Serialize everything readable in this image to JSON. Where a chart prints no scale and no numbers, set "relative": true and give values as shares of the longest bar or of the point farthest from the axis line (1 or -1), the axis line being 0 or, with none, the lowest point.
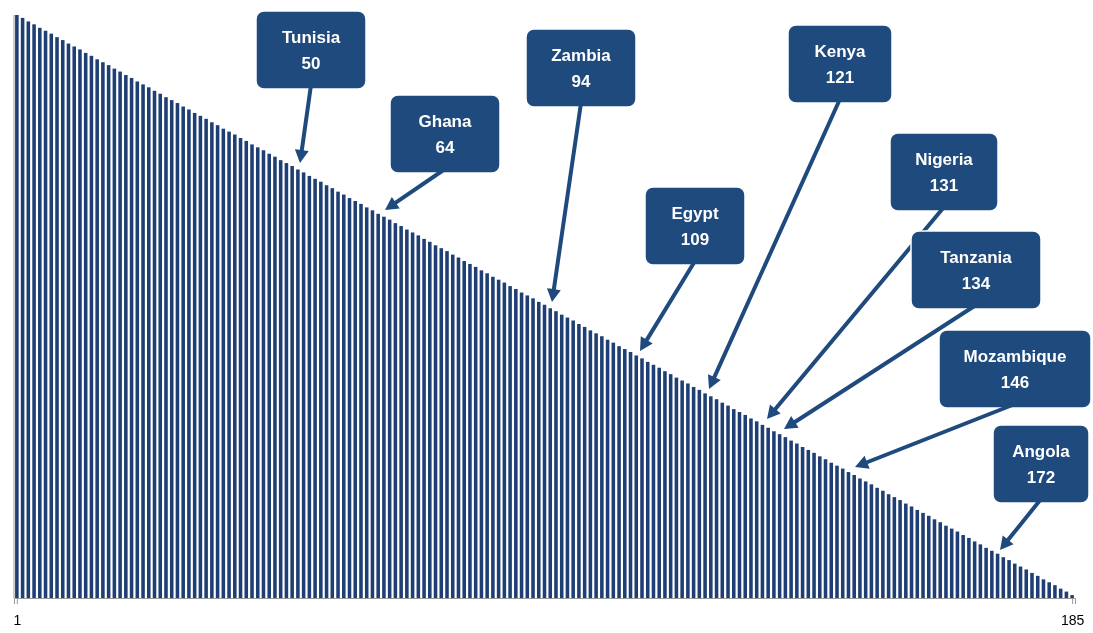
{
  "chart_data": {
    "type": "bar",
    "relative": true,
    "color": "#1f3f74",
    "x": [
      1,
      2,
      3,
      4,
      5,
      6,
      7,
      8,
      9,
      10,
      11,
      12,
      13,
      14,
      15,
      16,
      17,
      18,
      19,
      20,
      21,
      22,
      23,
      24,
      25,
      26,
      27,
      28,
      29,
      30,
      31,
      32,
      33,
      34,
      35,
      36,
      37,
      38,
      39,
      40,
      41,
      42,
      43,
      44,
      45,
      46,
      47,
      48,
      49,
      50,
      51,
      52,
      53,
      54,
      55,
      56,
      57,
      58,
      59,
      60,
      61,
      62,
      63,
      64,
      65,
      66,
      67,
      68,
      69,
      70,
      71,
      72,
      73,
      74,
      75,
      76,
      77,
      78,
      79,
      80,
      81,
      82,
      83,
      84,
      85,
      86,
      87,
      88,
      89,
      90,
      91,
      92,
      93,
      94,
      95,
      96,
      97,
      98,
      99,
      100,
      101,
      102,
      103,
      104,
      105,
      106,
      107,
      108,
      109,
      110,
      111,
      112,
      113,
      114,
      115,
      116,
      117,
      118,
      119,
      120,
      121,
      122,
      123,
      124,
      125,
      126,
      127,
      128,
      129,
      130,
      131,
      132,
      133,
      134,
      135,
      136,
      137,
      138,
      139,
      140,
      141,
      142,
      143,
      144,
      145,
      146,
      147,
      148,
      149,
      150,
      151,
      152,
      153,
      154,
      155,
      156,
      157,
      158,
      159,
      160,
      161,
      162,
      163,
      164,
      165,
      166,
      167,
      168,
      169,
      170,
      171,
      172,
      173,
      174,
      175,
      176,
      177,
      178,
      179,
      180,
      181,
      182,
      183,
      184,
      185
    ],
    "values": [
      1.0,
      0.995,
      0.989,
      0.984,
      0.978,
      0.973,
      0.968,
      0.962,
      0.957,
      0.951,
      0.946,
      0.941,
      0.935,
      0.93,
      0.924,
      0.919,
      0.914,
      0.908,
      0.903,
      0.897,
      0.892,
      0.886,
      0.881,
      0.876,
      0.87,
      0.865,
      0.859,
      0.854,
      0.849,
      0.843,
      0.838,
      0.832,
      0.827,
      0.822,
      0.816,
      0.811,
      0.805,
      0.8,
      0.795,
      0.789,
      0.784,
      0.778,
      0.773,
      0.768,
      0.762,
      0.757,
      0.751,
      0.746,
      0.741,
      0.735,
      0.73,
      0.724,
      0.719,
      0.714,
      0.708,
      0.703,
      0.697,
      0.692,
      0.686,
      0.681,
      0.676,
      0.67,
      0.665,
      0.659,
      0.654,
      0.649,
      0.643,
      0.638,
      0.632,
      0.627,
      0.622,
      0.616,
      0.611,
      0.605,
      0.6,
      0.595,
      0.589,
      0.584,
      0.578,
      0.573,
      0.568,
      0.562,
      0.557,
      0.551,
      0.546,
      0.541,
      0.535,
      0.53,
      0.524,
      0.519,
      0.514,
      0.508,
      0.503,
      0.497,
      0.492,
      0.486,
      0.481,
      0.476,
      0.47,
      0.465,
      0.459,
      0.454,
      0.449,
      0.443,
      0.438,
      0.432,
      0.427,
      0.422,
      0.416,
      0.411,
      0.405,
      0.4,
      0.395,
      0.389,
      0.384,
      0.378,
      0.373,
      0.368,
      0.362,
      0.357,
      0.351,
      0.346,
      0.341,
      0.335,
      0.33,
      0.324,
      0.319,
      0.314,
      0.308,
      0.303,
      0.297,
      0.292,
      0.286,
      0.281,
      0.276,
      0.27,
      0.265,
      0.259,
      0.254,
      0.249,
      0.243,
      0.238,
      0.232,
      0.227,
      0.222,
      0.216,
      0.211,
      0.205,
      0.2,
      0.195,
      0.189,
      0.184,
      0.178,
      0.173,
      0.168,
      0.162,
      0.157,
      0.151,
      0.146,
      0.141,
      0.135,
      0.13,
      0.124,
      0.119,
      0.114,
      0.108,
      0.103,
      0.097,
      0.092,
      0.086,
      0.081,
      0.076,
      0.07,
      0.065,
      0.059,
      0.054,
      0.049,
      0.043,
      0.038,
      0.032,
      0.027,
      0.022,
      0.016,
      0.011,
      0.005
    ],
    "xlim": [
      0.5,
      185.5
    ],
    "xticks": [
      1,
      185
    ],
    "tick_labels": "x",
    "annotations": [
      "Tunisia\n50",
      "Ghana\n64",
      "Zambia\n94",
      "Egypt\n109",
      "Kenya\n121",
      "Nigeria\n131",
      "Tanzania\n134",
      "Mozambique\n146",
      "Angola\n172"
    ]
  }
}
